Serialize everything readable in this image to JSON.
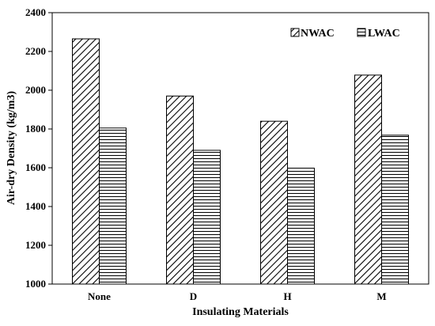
{
  "chart_data": {
    "type": "bar",
    "title": "",
    "xlabel": "Insulating Materials",
    "ylabel": "Air-dry Density (kg/m3)",
    "categories": [
      "None",
      "D",
      "H",
      "M"
    ],
    "ylim": [
      1000,
      2400
    ],
    "yticks": [
      1000,
      1200,
      1400,
      1600,
      1800,
      2000,
      2200,
      2400
    ],
    "grid": false,
    "legend_position": "top-right",
    "series": [
      {
        "name": "NWAC",
        "values": [
          2265,
          1970,
          1840,
          2078
        ],
        "pattern": "diagonal-hatch",
        "color": "#000000"
      },
      {
        "name": "LWAC",
        "values": [
          1805,
          1690,
          1598,
          1768
        ],
        "pattern": "horizontal-lines",
        "color": "#000000"
      }
    ]
  }
}
